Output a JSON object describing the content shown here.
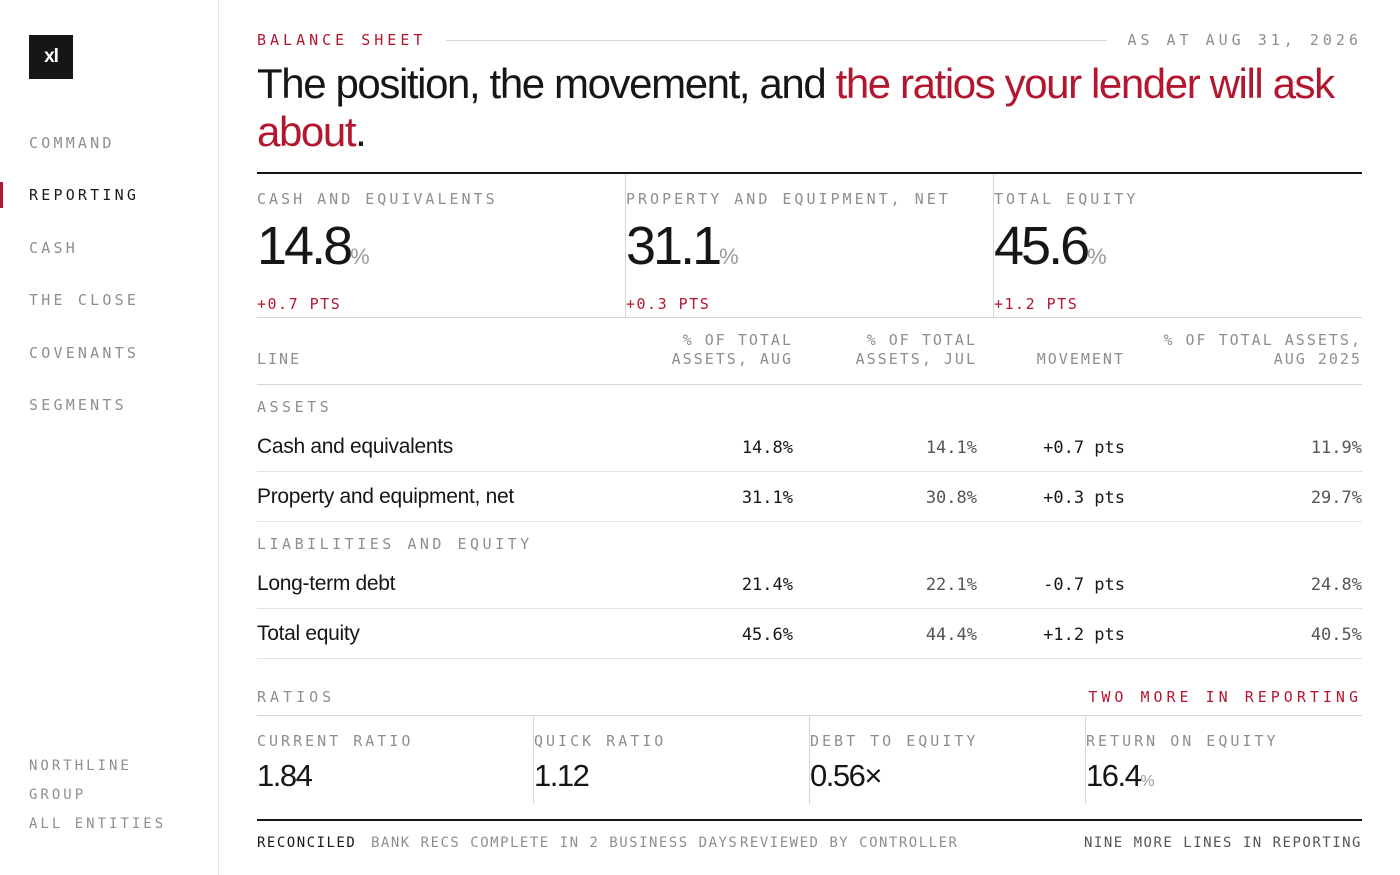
{
  "brand": {
    "logo_text": "xl"
  },
  "nav": {
    "items": [
      {
        "label": "COMMAND",
        "active": false
      },
      {
        "label": "REPORTING",
        "active": true
      },
      {
        "label": "CASH",
        "active": false
      },
      {
        "label": "THE CLOSE",
        "active": false
      },
      {
        "label": "COVENANTS",
        "active": false
      },
      {
        "label": "SEGMENTS",
        "active": false
      }
    ]
  },
  "entity": {
    "line1": "NORTHLINE",
    "line2": "GROUP",
    "line3": "ALL ENTITIES"
  },
  "header": {
    "eyebrow": "BALANCE SHEET",
    "as_of": "AS AT AUG 31, 2026",
    "headline_plain": "The position, the movement, and ",
    "headline_accent": "the ratios your lender will ask about",
    "headline_end": "."
  },
  "kpis": [
    {
      "label": "CASH AND EQUIVALENTS",
      "value": "14.8",
      "unit": "%",
      "delta": "+0.7 PTS"
    },
    {
      "label": "PROPERTY AND EQUIPMENT, NET",
      "value": "31.1",
      "unit": "%",
      "delta": "+0.3 PTS"
    },
    {
      "label": "TOTAL EQUITY",
      "value": "45.6",
      "unit": "%",
      "delta": "+1.2 PTS"
    }
  ],
  "table": {
    "columns": {
      "line": "LINE",
      "aug_1": "% OF TOTAL",
      "aug_2": "ASSETS, AUG",
      "jul_1": "% OF TOTAL",
      "jul_2": "ASSETS, JUL",
      "movement": "MOVEMENT",
      "prev_1": "% OF TOTAL ASSETS,",
      "prev_2": "AUG 2025"
    },
    "sections": [
      {
        "label": "ASSETS",
        "rows": [
          {
            "line": "Cash and equivalents",
            "aug": "14.8%",
            "jul": "14.1%",
            "movement": "+0.7 pts",
            "prev": "11.9%"
          },
          {
            "line": "Property and equipment, net",
            "aug": "31.1%",
            "jul": "30.8%",
            "movement": "+0.3 pts",
            "prev": "29.7%"
          }
        ]
      },
      {
        "label": "LIABILITIES AND EQUITY",
        "rows": [
          {
            "line": "Long-term debt",
            "aug": "21.4%",
            "jul": "22.1%",
            "movement": "-0.7 pts",
            "prev": "24.8%"
          },
          {
            "line": "Total equity",
            "aug": "45.6%",
            "jul": "44.4%",
            "movement": "+1.2 pts",
            "prev": "40.5%"
          }
        ]
      }
    ]
  },
  "ratios": {
    "title": "RATIOS",
    "link": "TWO MORE IN REPORTING",
    "items": [
      {
        "label": "CURRENT RATIO",
        "value": "1.84",
        "unit": ""
      },
      {
        "label": "QUICK RATIO",
        "value": "1.12",
        "unit": ""
      },
      {
        "label": "DEBT TO EQUITY",
        "value": "0.56×",
        "unit": ""
      },
      {
        "label": "RETURN ON EQUITY",
        "value": "16.4",
        "unit": "%"
      }
    ]
  },
  "footer": {
    "status": "RECONCILED",
    "note1": "BANK RECS COMPLETE IN 2 BUSINESS DAYS",
    "note2": "REVIEWED BY CONTROLLER",
    "more": "NINE MORE LINES IN REPORTING"
  },
  "colors": {
    "accent": "#b3172f",
    "ink": "#161616",
    "muted": "#8e8e8e",
    "rule": "#d6d6d6"
  }
}
